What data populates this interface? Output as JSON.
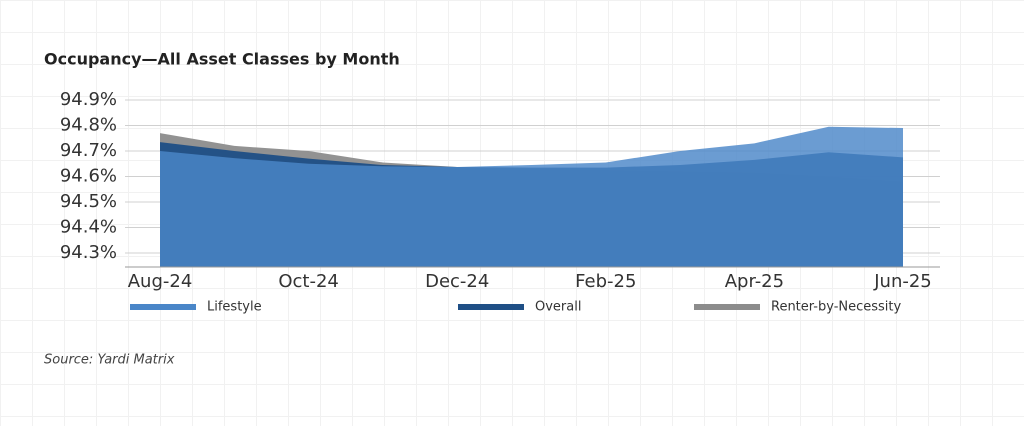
{
  "chart_data": {
    "type": "area",
    "title": "Occupancy—All Asset Classes by Month",
    "categories": [
      "Aug-24",
      null,
      "Oct-24",
      null,
      "Dec-24",
      null,
      "Feb-25",
      null,
      "Apr-25",
      null,
      "Jun-25"
    ],
    "series": [
      {
        "name": "Renter-by-Necessity",
        "color": "#8c8c8c",
        "values": [
          94.77,
          94.72,
          94.7,
          94.655,
          94.637,
          94.63,
          94.625,
          94.62,
          94.615,
          94.6,
          94.58
        ]
      },
      {
        "name": "Overall",
        "color": "#1f4f86",
        "values": [
          94.735,
          94.7,
          94.67,
          94.645,
          94.637,
          94.635,
          94.635,
          94.645,
          94.665,
          94.695,
          94.675
        ]
      },
      {
        "name": "Lifestyle",
        "color": "#4a86c8",
        "values": [
          94.7,
          94.672,
          94.65,
          94.64,
          94.637,
          94.645,
          94.655,
          94.7,
          94.73,
          94.795,
          94.79
        ]
      }
    ],
    "legend_order": [
      2,
      1,
      0
    ],
    "ylim": [
      94.245,
      94.9
    ],
    "yticks": [
      {
        "value": 94.3,
        "label": "94.3%"
      },
      {
        "value": 94.4,
        "label": "94.4%"
      },
      {
        "value": 94.5,
        "label": "94.5%"
      },
      {
        "value": 94.6,
        "label": "94.6%"
      },
      {
        "value": 94.7,
        "label": "94.7%"
      },
      {
        "value": 94.8,
        "label": "94.8%"
      },
      {
        "value": 94.9,
        "label": "94.9%"
      }
    ],
    "grid": true,
    "legend": "bottom",
    "source": "Source: Yardi Matrix"
  }
}
